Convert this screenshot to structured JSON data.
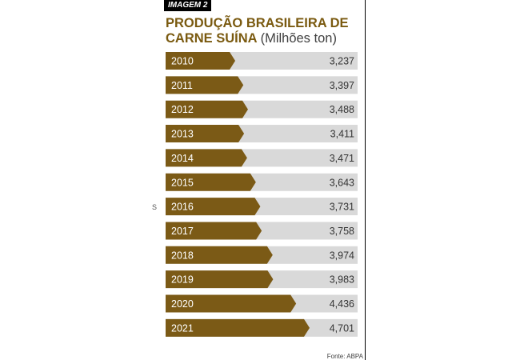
{
  "header": {
    "tag": "IMAGEM 2",
    "title": "PRODUÇÃO BRASILEIRA DE CARNE SUÍNA",
    "unit": "(Milhões ton)"
  },
  "source": "Fonte: ABPA",
  "side_mark": "S",
  "colors": {
    "accent": "#7b5a16",
    "track": "#d9d9d9",
    "label_text": "#ffffff",
    "value_text": "#333333"
  },
  "chart_data": {
    "type": "bar",
    "orientation": "horizontal",
    "title": "PRODUÇÃO BRASILEIRA DE CARNE SUÍNA",
    "unit": "(Milhões ton)",
    "categories": [
      "2010",
      "2011",
      "2012",
      "2013",
      "2014",
      "2015",
      "2016",
      "2017",
      "2018",
      "2019",
      "2020",
      "2021"
    ],
    "values": [
      3.237,
      3.397,
      3.488,
      3.411,
      3.471,
      3.643,
      3.731,
      3.758,
      3.974,
      3.983,
      4.436,
      4.701
    ],
    "value_labels": [
      "3,237",
      "3,397",
      "3,488",
      "3,411",
      "3,471",
      "3,643",
      "3,731",
      "3,758",
      "3,974",
      "3,983",
      "4,436",
      "4,701"
    ]
  }
}
